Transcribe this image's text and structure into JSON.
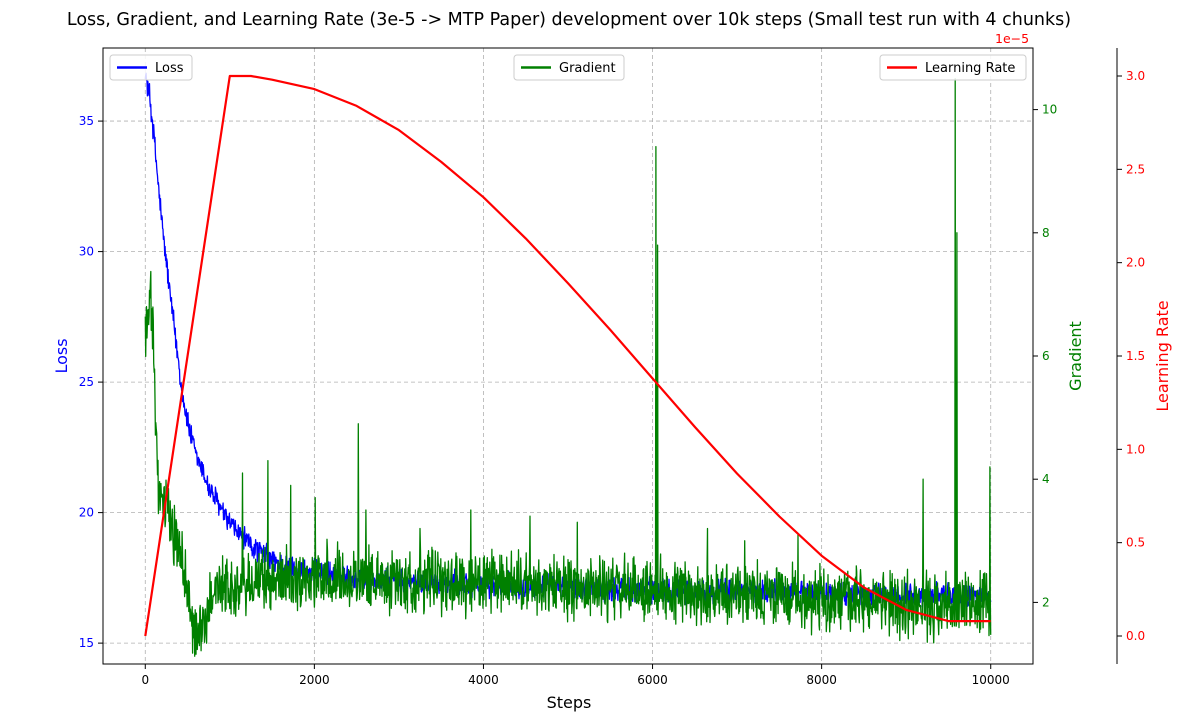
{
  "chart_data": {
    "type": "line",
    "title": "Loss, Gradient, and Learning Rate (3e-5 -> MTP Paper) development over 10k steps (Small test run with 4 chunks)",
    "xlabel": "Steps",
    "xlim": [
      -500,
      10500
    ],
    "xticks": [
      0,
      2000,
      4000,
      6000,
      8000,
      10000
    ],
    "grid": true,
    "axes": {
      "loss": {
        "label": "Loss",
        "color": "#0000ff",
        "ylim": [
          14.2,
          37.8
        ],
        "ticks": [
          15,
          20,
          25,
          30,
          35
        ]
      },
      "gradient": {
        "label": "Gradient",
        "color": "#008000",
        "ylim": [
          1.0,
          11.0
        ],
        "ticks": [
          2,
          4,
          6,
          8,
          10
        ],
        "offset_text": "1e−5"
      },
      "lr": {
        "label": "Learning Rate",
        "color": "#ff0000",
        "ylim": [
          -0.15,
          3.15
        ],
        "ticks": [
          0.0,
          0.5,
          1.0,
          1.5,
          2.0,
          2.5,
          3.0
        ]
      }
    },
    "series": [
      {
        "name": "Loss",
        "axis": "loss",
        "color": "#0000ff",
        "x": [
          0,
          50,
          100,
          150,
          200,
          250,
          300,
          350,
          400,
          450,
          500,
          550,
          600,
          650,
          700,
          750,
          800,
          850,
          900,
          950,
          1000,
          1100,
          1200,
          1300,
          1400,
          1500,
          1600,
          1800,
          2000,
          2200,
          2400,
          2600,
          2800,
          3000,
          3500,
          4000,
          4500,
          5000,
          5500,
          6000,
          6500,
          7000,
          7500,
          8000,
          8500,
          9000,
          9500,
          10000
        ],
        "values": [
          36.8,
          36.0,
          34.5,
          32.7,
          31.0,
          29.6,
          28.2,
          26.9,
          25.6,
          24.3,
          23.5,
          22.8,
          22.2,
          21.8,
          21.4,
          21.0,
          20.7,
          20.4,
          20.1,
          19.8,
          19.6,
          19.2,
          18.9,
          18.6,
          18.4,
          18.2,
          18.0,
          17.8,
          17.7,
          17.6,
          17.5,
          17.45,
          17.4,
          17.35,
          17.3,
          17.25,
          17.2,
          17.15,
          17.1,
          17.05,
          17.0,
          17.0,
          16.95,
          16.9,
          16.85,
          16.85,
          16.8,
          16.8
        ],
        "noise": 0.38
      },
      {
        "name": "Gradient",
        "axis": "gradient",
        "color": "#008000",
        "x": [
          0,
          30,
          60,
          90,
          120,
          150,
          200,
          300,
          400,
          500,
          550,
          600,
          650,
          700,
          750,
          800,
          900,
          1000,
          1100,
          1200,
          1400,
          1600,
          2000,
          2500,
          3000,
          4000,
          5000,
          6000,
          7000,
          8000,
          8500,
          9000,
          9500,
          10000
        ],
        "values": [
          6.3,
          6.6,
          6.9,
          6.5,
          5.2,
          4.0,
          3.6,
          3.3,
          2.9,
          2.2,
          1.7,
          1.5,
          1.5,
          1.6,
          1.9,
          2.2,
          2.3,
          2.2,
          2.2,
          2.3,
          2.35,
          2.4,
          2.4,
          2.4,
          2.35,
          2.3,
          2.25,
          2.2,
          2.15,
          2.05,
          2.0,
          1.95,
          1.95,
          1.95
        ],
        "noise": 0.42,
        "spikes": [
          {
            "x": 1150,
            "value": 4.1
          },
          {
            "x": 1450,
            "value": 4.3
          },
          {
            "x": 1720,
            "value": 3.9
          },
          {
            "x": 2010,
            "value": 3.7
          },
          {
            "x": 2520,
            "value": 4.9
          },
          {
            "x": 2610,
            "value": 3.5
          },
          {
            "x": 3250,
            "value": 3.2
          },
          {
            "x": 3850,
            "value": 3.5
          },
          {
            "x": 4550,
            "value": 3.4
          },
          {
            "x": 5110,
            "value": 3.3
          },
          {
            "x": 6040,
            "value": 9.4
          },
          {
            "x": 6060,
            "value": 7.8
          },
          {
            "x": 6650,
            "value": 3.2
          },
          {
            "x": 7090,
            "value": 3.0
          },
          {
            "x": 7720,
            "value": 3.1
          },
          {
            "x": 9200,
            "value": 4.0
          },
          {
            "x": 9580,
            "value": 10.5
          },
          {
            "x": 9600,
            "value": 8.0
          },
          {
            "x": 9990,
            "value": 4.2
          }
        ]
      },
      {
        "name": "Learning Rate",
        "axis": "lr",
        "color": "#ff0000",
        "x": [
          0,
          1000,
          1250,
          1500,
          2000,
          2500,
          3000,
          3500,
          4000,
          4500,
          5000,
          5500,
          6000,
          6500,
          7000,
          7500,
          8000,
          8500,
          9000,
          9500,
          10000
        ],
        "values": [
          0.0,
          3.0,
          3.0,
          2.98,
          2.93,
          2.84,
          2.71,
          2.54,
          2.35,
          2.13,
          1.89,
          1.64,
          1.38,
          1.12,
          0.87,
          0.64,
          0.43,
          0.26,
          0.14,
          0.08,
          0.08
        ]
      }
    ],
    "legends": [
      {
        "label": "Loss",
        "color": "#0000ff",
        "placement": "top-left"
      },
      {
        "label": "Gradient",
        "color": "#008000",
        "placement": "top-center"
      },
      {
        "label": "Learning Rate",
        "color": "#ff0000",
        "placement": "top-right"
      }
    ]
  }
}
